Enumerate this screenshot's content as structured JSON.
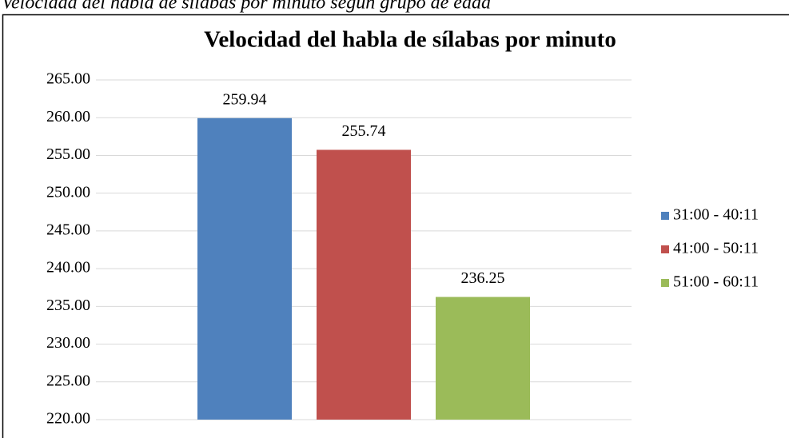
{
  "caption": "Velocidad del habla de sílabas por minuto según grupo de edad",
  "chart_data": {
    "type": "bar",
    "title": "Velocidad del habla de sílabas por minuto",
    "categories": [
      null
    ],
    "series": [
      {
        "name": "31:00 - 40:11",
        "color": "#4f81bd",
        "values": [
          259.94
        ]
      },
      {
        "name": "41:00 - 50:11",
        "color": "#c0504d",
        "values": [
          255.74
        ]
      },
      {
        "name": "51:00 - 60:11",
        "color": "#9bbb59",
        "values": [
          236.25
        ]
      }
    ],
    "ylim": [
      220,
      265
    ],
    "yticks": [
      {
        "value": 220,
        "label": "220.00"
      },
      {
        "value": 225,
        "label": "225.00"
      },
      {
        "value": 230,
        "label": "230.00"
      },
      {
        "value": 235,
        "label": "235.00"
      },
      {
        "value": 240,
        "label": "240.00"
      },
      {
        "value": 245,
        "label": "245.00"
      },
      {
        "value": 250,
        "label": "250.00"
      },
      {
        "value": 255,
        "label": "255.00"
      },
      {
        "value": 260,
        "label": "260.00"
      },
      {
        "value": 265,
        "label": "265.00"
      }
    ],
    "grid": true,
    "legend": "right"
  }
}
